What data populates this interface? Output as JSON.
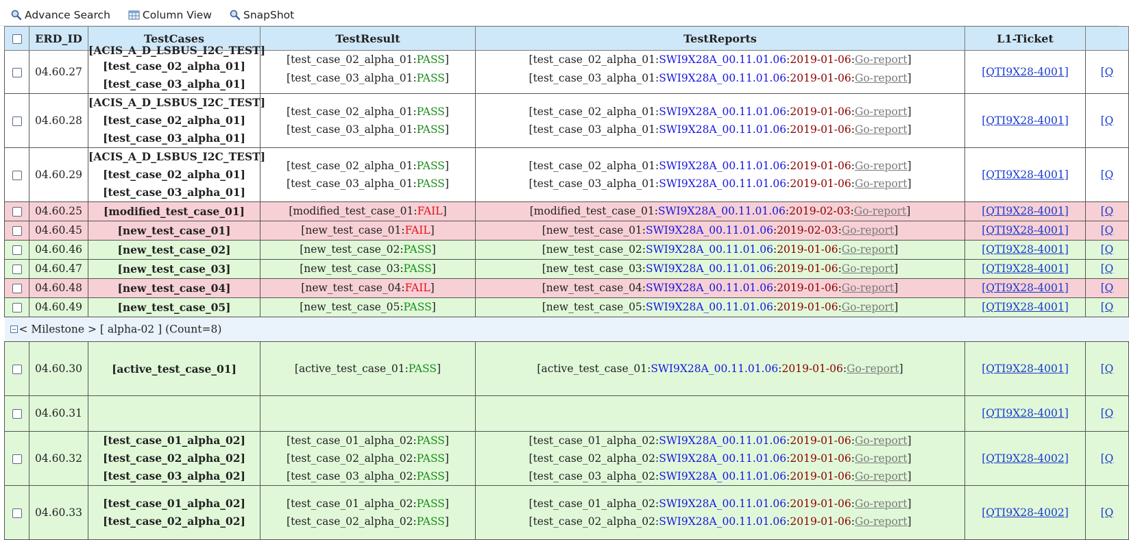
{
  "toolbar": {
    "advance_search": "Advance Search",
    "column_view": "Column View",
    "snapshot": "SnapShot"
  },
  "columns": {
    "erd_id": "ERD_ID",
    "testcases": "TestCases",
    "testresult": "TestResult",
    "testreports": "TestReports",
    "l1_ticket": "L1-Ticket"
  },
  "group_alpha02": "< Milestone > [ alpha-02 ] (Count=8)",
  "build": "SWI9X28A_00.11.01.06",
  "go": "Go-report",
  "rows": {
    "r27": {
      "id": "04.60.27",
      "tc": [
        "[ACIS_A_D_LSBUS_I2C_TEST]",
        "[test_case_02_alpha_01]",
        "[test_case_03_alpha_01]"
      ],
      "res": [
        [
          "test_case_02_alpha_01",
          "PASS"
        ],
        [
          "test_case_03_alpha_01",
          "PASS"
        ]
      ],
      "rep": [
        [
          "test_case_02_alpha_01",
          "2019-01-06"
        ],
        [
          "test_case_03_alpha_01",
          "2019-01-06"
        ]
      ],
      "ticket": "[QTI9X28-4001]"
    },
    "r28": {
      "id": "04.60.28",
      "tc": [
        "[ACIS_A_D_LSBUS_I2C_TEST]",
        "[test_case_02_alpha_01]",
        "[test_case_03_alpha_01]"
      ],
      "res": [
        [
          "test_case_02_alpha_01",
          "PASS"
        ],
        [
          "test_case_03_alpha_01",
          "PASS"
        ]
      ],
      "rep": [
        [
          "test_case_02_alpha_01",
          "2019-01-06"
        ],
        [
          "test_case_03_alpha_01",
          "2019-01-06"
        ]
      ],
      "ticket": "[QTI9X28-4001]"
    },
    "r29": {
      "id": "04.60.29",
      "tc": [
        "[ACIS_A_D_LSBUS_I2C_TEST]",
        "[test_case_02_alpha_01]",
        "[test_case_03_alpha_01]"
      ],
      "res": [
        [
          "test_case_02_alpha_01",
          "PASS"
        ],
        [
          "test_case_03_alpha_01",
          "PASS"
        ]
      ],
      "rep": [
        [
          "test_case_02_alpha_01",
          "2019-01-06"
        ],
        [
          "test_case_03_alpha_01",
          "2019-01-06"
        ]
      ],
      "ticket": "[QTI9X28-4001]"
    },
    "r25": {
      "id": "04.60.25",
      "tc": "[modified_test_case_01]",
      "res": [
        "modified_test_case_01",
        "FAIL"
      ],
      "rep": [
        "modified_test_case_01",
        "2019-02-03"
      ],
      "ticket": "[QTI9X28-4001]"
    },
    "r45": {
      "id": "04.60.45",
      "tc": "[new_test_case_01]",
      "res": [
        "new_test_case_01",
        "FAIL"
      ],
      "rep": [
        "new_test_case_01",
        "2019-02-03"
      ],
      "ticket": "[QTI9X28-4001]"
    },
    "r46": {
      "id": "04.60.46",
      "tc": "[new_test_case_02]",
      "res": [
        "new_test_case_02",
        "PASS"
      ],
      "rep": [
        "new_test_case_02",
        "2019-01-06"
      ],
      "ticket": "[QTI9X28-4001]"
    },
    "r47": {
      "id": "04.60.47",
      "tc": "[new_test_case_03]",
      "res": [
        "new_test_case_03",
        "PASS"
      ],
      "rep": [
        "new_test_case_03",
        "2019-01-06"
      ],
      "ticket": "[QTI9X28-4001]"
    },
    "r48": {
      "id": "04.60.48",
      "tc": "[new_test_case_04]",
      "res": [
        "new_test_case_04",
        "FAIL"
      ],
      "rep": [
        "new_test_case_04",
        "2019-01-06"
      ],
      "ticket": "[QTI9X28-4001]"
    },
    "r49": {
      "id": "04.60.49",
      "tc": "[new_test_case_05]",
      "res": [
        "new_test_case_05",
        "PASS"
      ],
      "rep": [
        "new_test_case_05",
        "2019-01-06"
      ],
      "ticket": "[QTI9X28-4001]"
    },
    "r30": {
      "id": "04.60.30",
      "tc": "[active_test_case_01]",
      "res": [
        "active_test_case_01",
        "PASS"
      ],
      "rep": [
        "active_test_case_01",
        "2019-01-06"
      ],
      "ticket": "[QTI9X28-4001]"
    },
    "r31": {
      "id": "04.60.31",
      "ticket": "[QTI9X28-4001]"
    },
    "r32": {
      "id": "04.60.32",
      "tc": [
        "[test_case_01_alpha_02]",
        "[test_case_02_alpha_02]",
        "[test_case_03_alpha_02]"
      ],
      "res": [
        [
          "test_case_01_alpha_02",
          "PASS"
        ],
        [
          "test_case_02_alpha_02",
          "PASS"
        ],
        [
          "test_case_03_alpha_02",
          "PASS"
        ]
      ],
      "rep": [
        [
          "test_case_01_alpha_02",
          "2019-01-06"
        ],
        [
          "test_case_02_alpha_02",
          "2019-01-06"
        ],
        [
          "test_case_03_alpha_02",
          "2019-01-06"
        ]
      ],
      "ticket": "[QTI9X28-4002]"
    },
    "r33": {
      "id": "04.60.33",
      "tc": [
        "[test_case_01_alpha_02]",
        "[test_case_02_alpha_02]"
      ],
      "res": [
        [
          "test_case_01_alpha_02",
          "PASS"
        ],
        [
          "test_case_02_alpha_02",
          "PASS"
        ]
      ],
      "rep": [
        [
          "test_case_01_alpha_02",
          "2019-01-06"
        ],
        [
          "test_case_02_alpha_02",
          "2019-01-06"
        ]
      ],
      "ticket": "[QTI9X28-4002]"
    }
  },
  "colors": {
    "header_bg": "#cfe8f9",
    "pass": "#1a8a1a",
    "fail": "#e0141c",
    "build": "#1515e0",
    "date": "#8b0000",
    "row_fail_bg": "#f7d0d5",
    "row_pass_bg": "#e0f8d8"
  }
}
